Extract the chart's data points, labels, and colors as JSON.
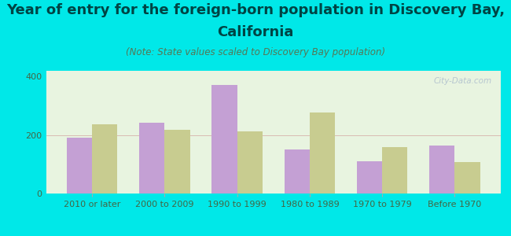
{
  "title_line1": "Year of entry for the foreign-born population in Discovery Bay,",
  "title_line2": "California",
  "subtitle": "(Note: State values scaled to Discovery Bay population)",
  "categories": [
    "2010 or later",
    "2000 to 2009",
    "1990 to 1999",
    "1980 to 1989",
    "1970 to 1979",
    "Before 1970"
  ],
  "discovery_bay": [
    190,
    242,
    371,
    150,
    110,
    163
  ],
  "california": [
    238,
    218,
    212,
    278,
    160,
    108
  ],
  "bar_color_db": "#c4a0d4",
  "bar_color_ca": "#c8cc90",
  "background_outer": "#00e8e8",
  "background_inner_left": "#d8f0d0",
  "background_inner_right": "#f5f8f0",
  "ylim": [
    0,
    420
  ],
  "yticks": [
    0,
    200,
    400
  ],
  "title_fontsize": 13,
  "subtitle_fontsize": 8.5,
  "tick_fontsize": 8,
  "legend_fontsize": 9.5,
  "watermark": "City-Data.com"
}
